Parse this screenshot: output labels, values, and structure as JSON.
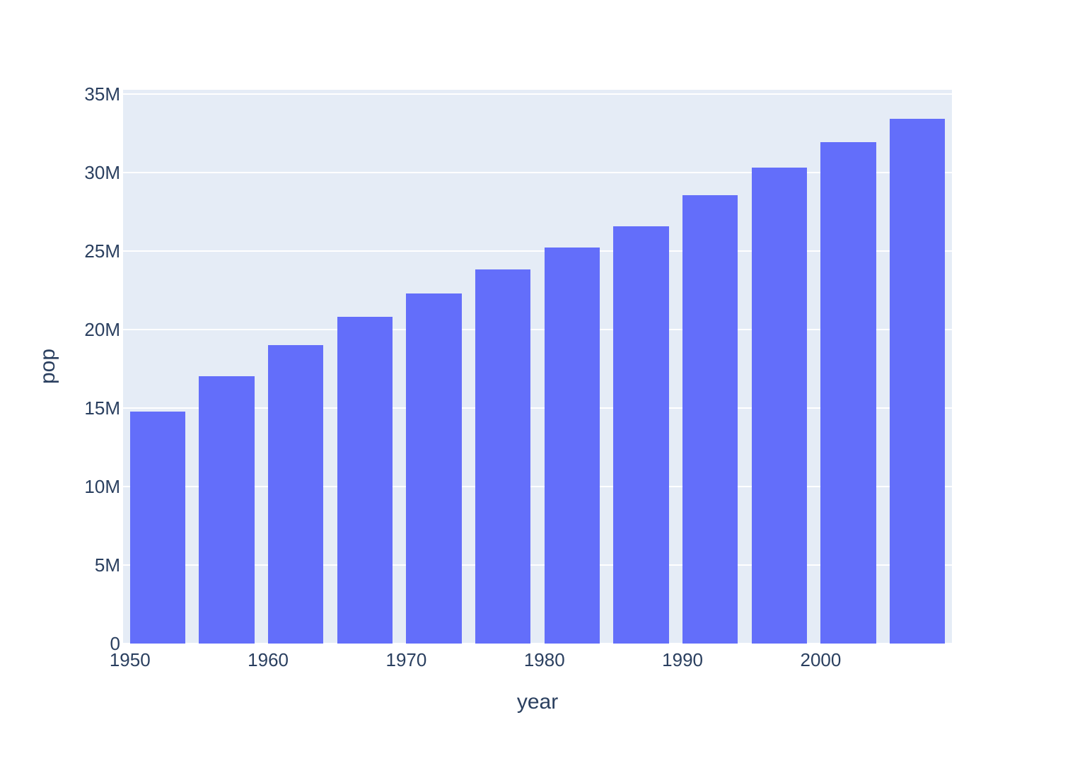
{
  "chart_data": {
    "type": "bar",
    "title": "",
    "xlabel": "year",
    "ylabel": "pop",
    "x": [
      1952,
      1957,
      1962,
      1967,
      1972,
      1977,
      1982,
      1987,
      1992,
      1997,
      2002,
      2007
    ],
    "series_name": "pop",
    "values": [
      14785584,
      17010154,
      18985849,
      20819767,
      22284500,
      23796400,
      25201900,
      26549700,
      28523502,
      30305843,
      31902268,
      33390141
    ],
    "xlim": [
      1949.5,
      2009.5
    ],
    "ylim": [
      0,
      35250000
    ],
    "bar_width_fraction": 0.8,
    "xticks": {
      "values": [
        1950,
        1960,
        1970,
        1980,
        1990,
        2000
      ],
      "labels": [
        "1950",
        "1960",
        "1970",
        "1980",
        "1990",
        "2000"
      ]
    },
    "yticks": {
      "values": [
        0,
        5000000,
        10000000,
        15000000,
        20000000,
        25000000,
        30000000,
        35000000
      ],
      "labels": [
        "0",
        "5M",
        "10M",
        "15M",
        "20M",
        "25M",
        "30M",
        "35M"
      ]
    },
    "grid": true,
    "legend": false,
    "colors": {
      "bar": "#636EFA",
      "plot_background": "#E5ECF6",
      "gridline": "#FFFFFF",
      "text": "#2A3F5F",
      "page_background": "#FFFFFF"
    }
  }
}
